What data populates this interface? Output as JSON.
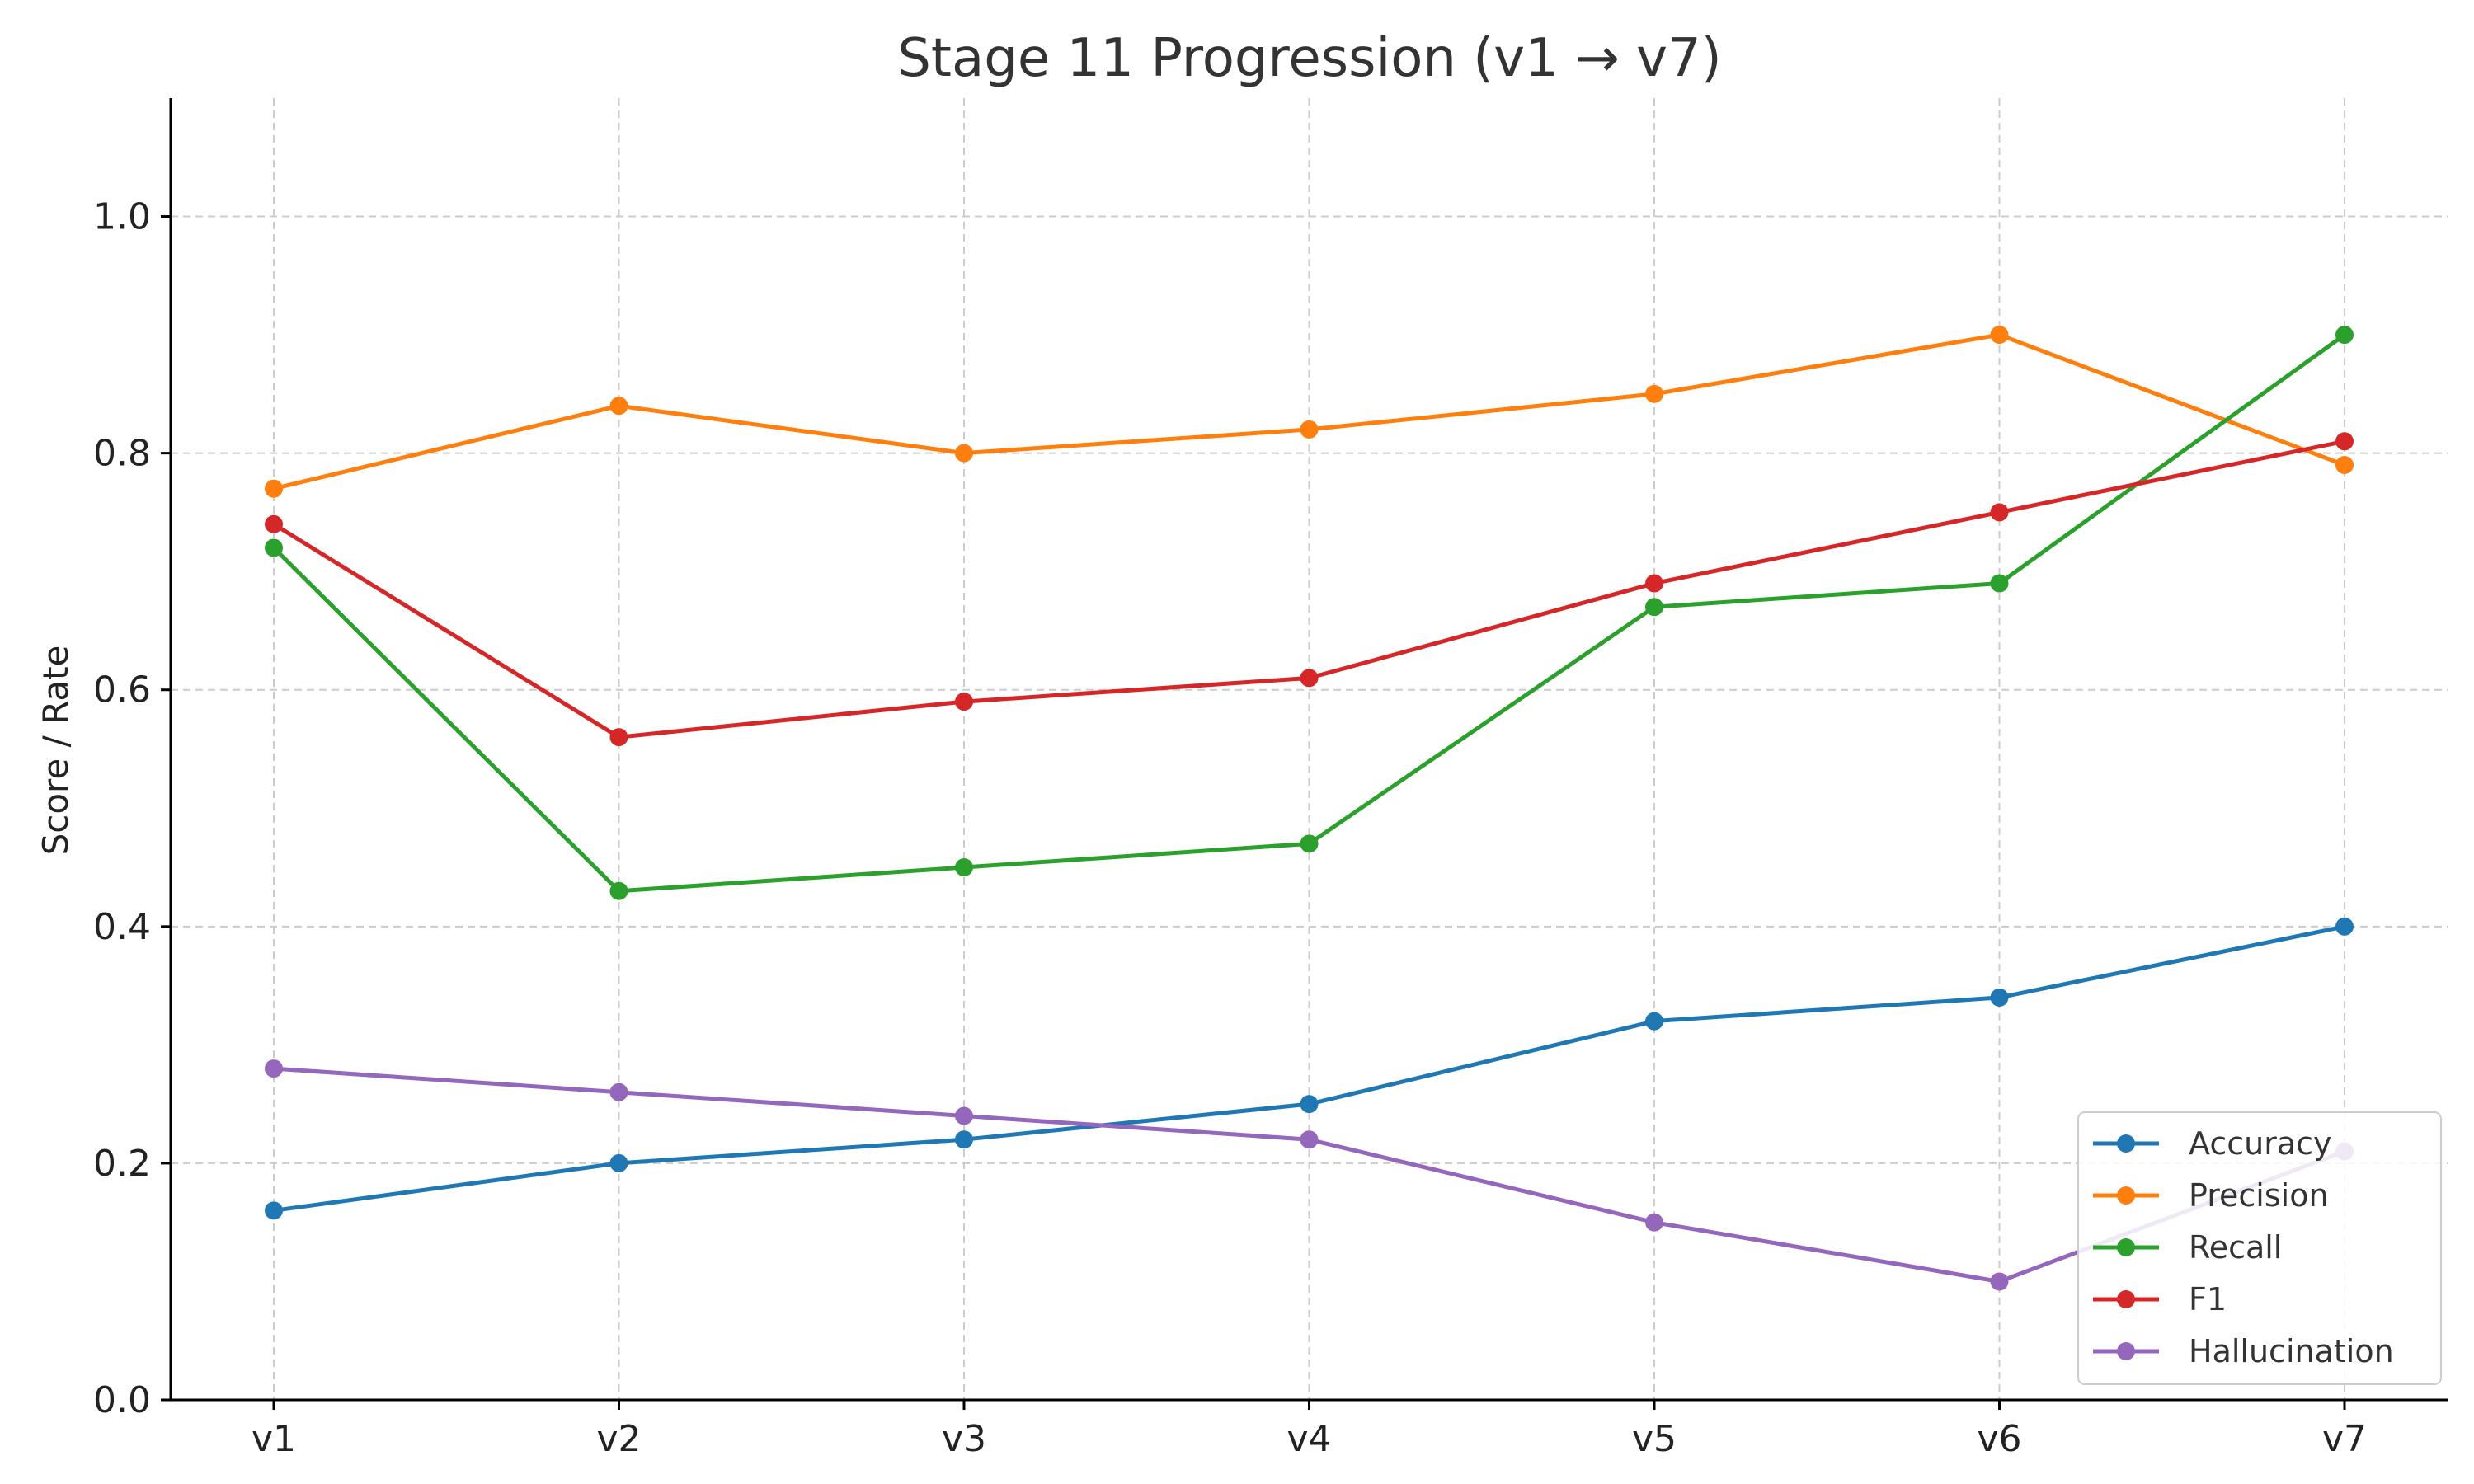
{
  "chart_data": {
    "type": "line",
    "title": "Stage 11 Progression (v1 → v7)",
    "xlabel": "",
    "ylabel": "Score / Rate",
    "categories": [
      "v1",
      "v2",
      "v3",
      "v4",
      "v5",
      "v6",
      "v7"
    ],
    "ylim": [
      0,
      1.1
    ],
    "yticks": [
      0.0,
      0.2,
      0.4,
      0.6,
      0.8,
      1.0
    ],
    "ytick_labels": [
      "0.0",
      "0.2",
      "0.4",
      "0.6",
      "0.8",
      "1.0"
    ],
    "grid": true,
    "legend_position": "bottom-right",
    "series": [
      {
        "name": "Accuracy",
        "color": "#1f77b4",
        "values": [
          0.16,
          0.2,
          0.22,
          0.25,
          0.32,
          0.34,
          0.4
        ]
      },
      {
        "name": "Precision",
        "color": "#ff7f0e",
        "values": [
          0.77,
          0.84,
          0.8,
          0.82,
          0.85,
          0.9,
          0.79
        ]
      },
      {
        "name": "Recall",
        "color": "#2ca02c",
        "values": [
          0.72,
          0.43,
          0.45,
          0.47,
          0.67,
          0.69,
          0.9
        ]
      },
      {
        "name": "F1",
        "color": "#d62728",
        "values": [
          0.74,
          0.56,
          0.59,
          0.61,
          0.69,
          0.75,
          0.81
        ]
      },
      {
        "name": "Hallucination",
        "color": "#9467bd",
        "values": [
          0.28,
          0.26,
          0.24,
          0.22,
          0.15,
          0.1,
          0.21
        ]
      }
    ]
  }
}
